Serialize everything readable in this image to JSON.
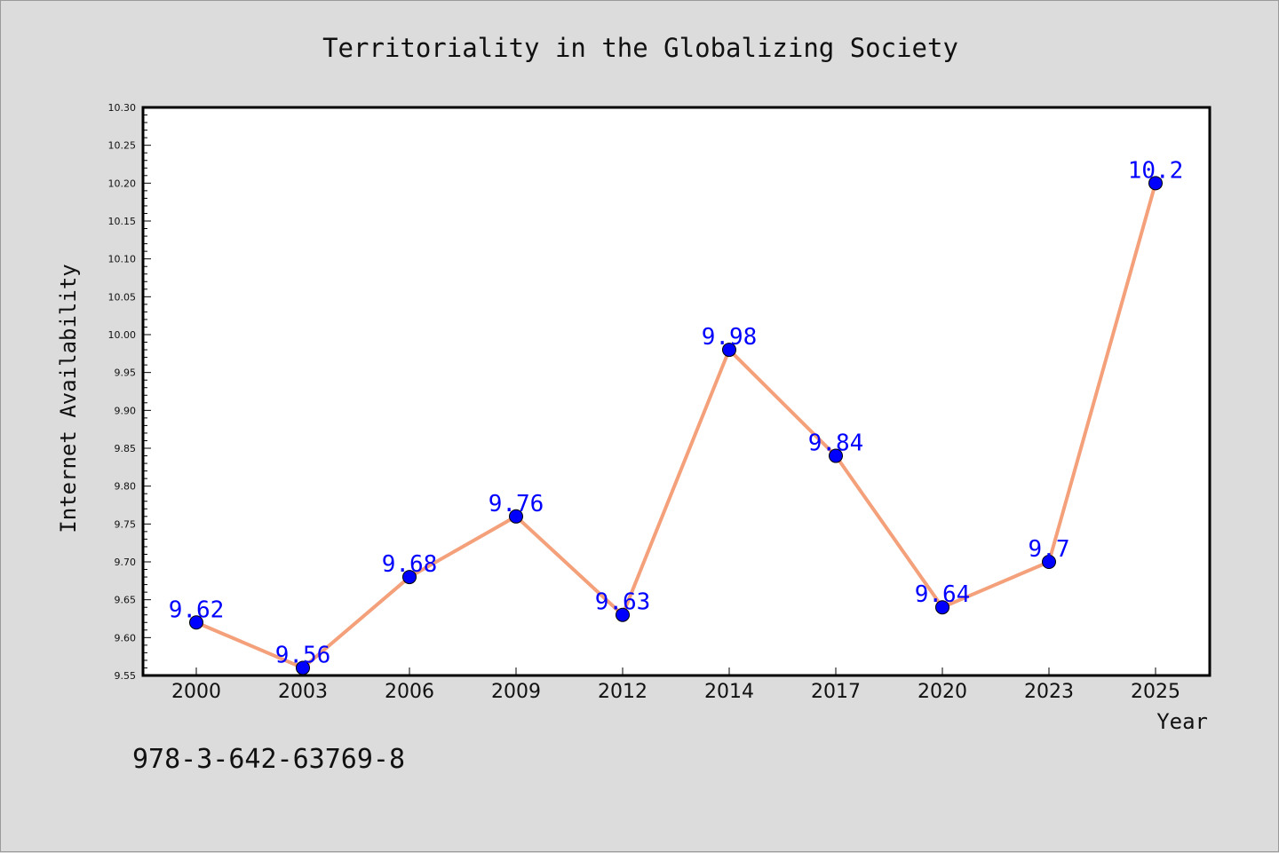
{
  "chart_data": {
    "type": "line",
    "title": "Territoriality in the Globalizing Society",
    "xlabel": "Year",
    "ylabel": "Internet Availability",
    "categories": [
      "2000",
      "2003",
      "2006",
      "2009",
      "2012",
      "2014",
      "2017",
      "2020",
      "2023",
      "2025"
    ],
    "values": [
      9.62,
      9.56,
      9.68,
      9.76,
      9.63,
      9.98,
      9.84,
      9.64,
      9.7,
      10.2
    ],
    "data_labels": [
      "9.62",
      "9.56",
      "9.68",
      "9.76",
      "9.63",
      "9.98",
      "9.84",
      "9.64",
      "9.7",
      "10.2"
    ],
    "ylim": [
      9.55,
      10.3
    ],
    "yticks": [
      "9.55",
      "9.60",
      "9.65",
      "9.70",
      "9.75",
      "9.80",
      "9.85",
      "9.90",
      "9.95",
      "10.00",
      "10.05",
      "10.10",
      "10.15",
      "10.20",
      "10.25",
      "10.30"
    ],
    "grid": false,
    "line_color": "#f4a07a",
    "marker_color": "#0000ff",
    "label_color": "#0000ff"
  },
  "footer": {
    "code": "978-3-642-63769-8"
  }
}
